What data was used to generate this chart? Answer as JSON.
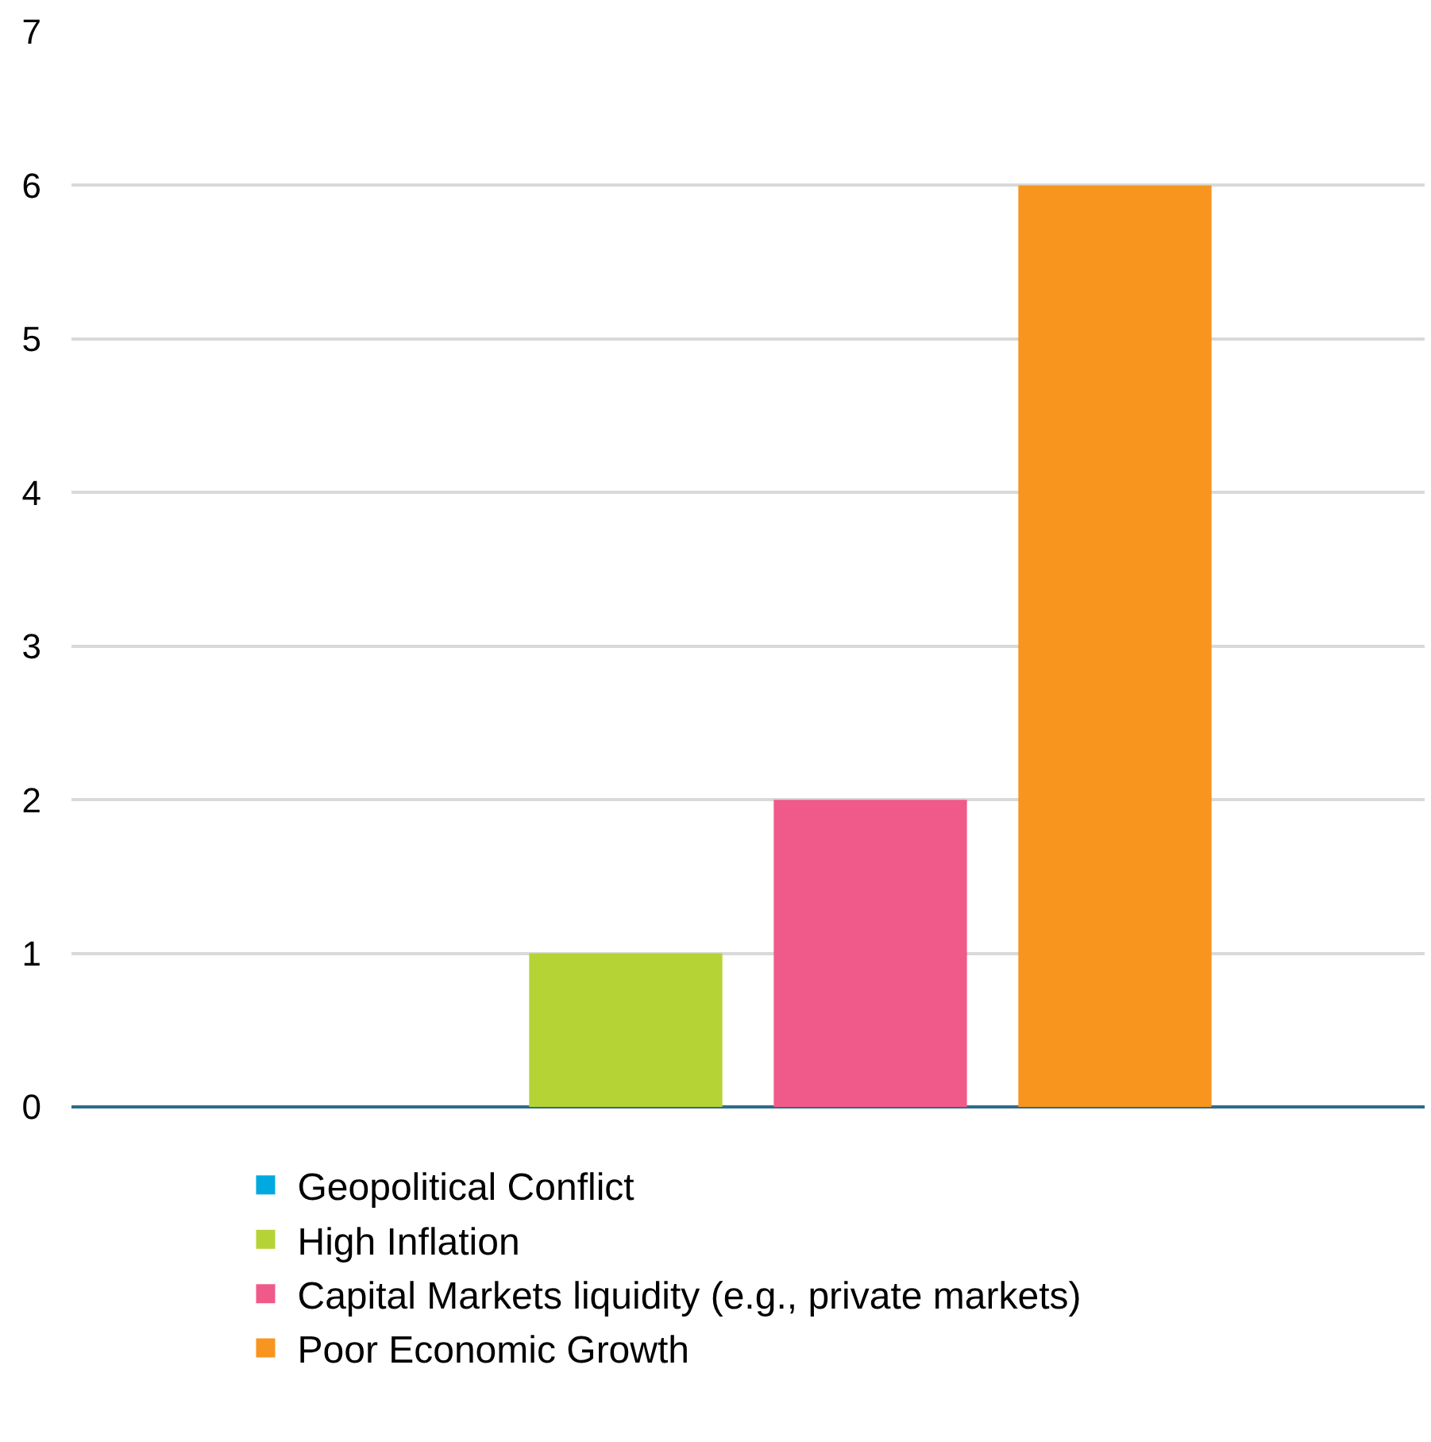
{
  "chart_data": {
    "type": "bar",
    "categories": [
      null
    ],
    "series": [
      {
        "name": "Geopolitical Conflict",
        "color": "#00a9e0",
        "values": [
          0
        ]
      },
      {
        "name": "High Inflation",
        "color": "#b5d334",
        "values": [
          1
        ]
      },
      {
        "name": "Capital Markets liquidity (e.g., private markets)",
        "color": "#f05a8a",
        "values": [
          2
        ]
      },
      {
        "name": "Poor Economic Growth",
        "color": "#f7951e",
        "values": [
          6
        ]
      }
    ],
    "ylim": [
      0,
      7
    ],
    "yticks": [
      0,
      1,
      2,
      3,
      4,
      5,
      6,
      7
    ],
    "grid": "y",
    "legend": "bottom",
    "tick_labels": "y"
  }
}
